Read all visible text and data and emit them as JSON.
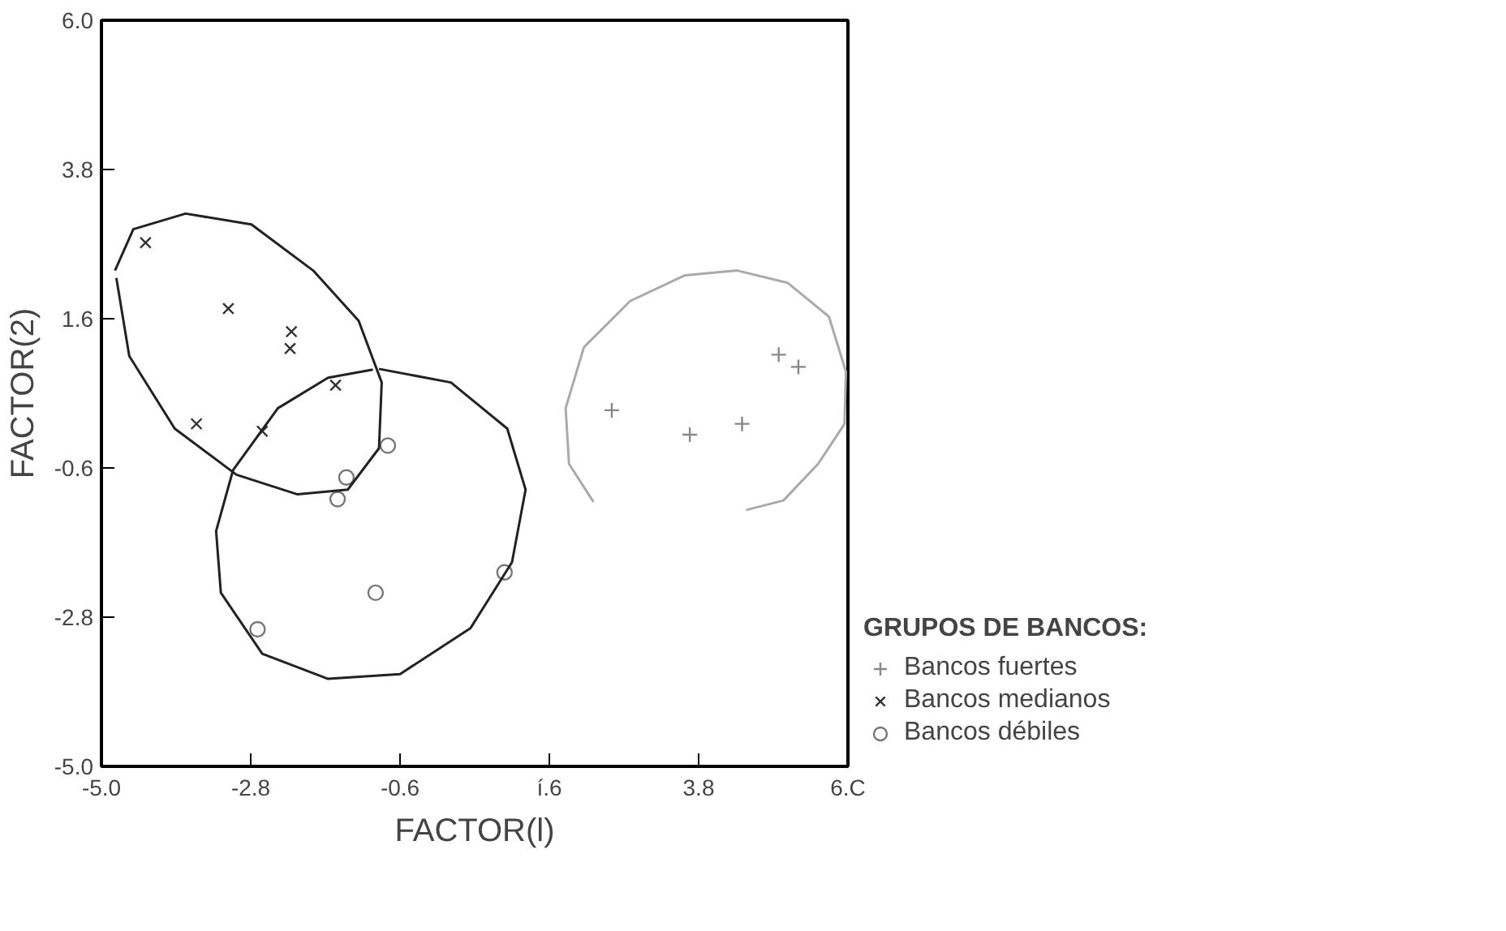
{
  "chart_data": {
    "type": "scatter",
    "xlabel": "FACTOR(l)",
    "ylabel": "FACTOR(2)",
    "legend_title": "GRUPOS DE BANCOS:",
    "legend": "right",
    "grid": false,
    "xlim": [
      -5.0,
      6.0
    ],
    "ylim": [
      -5.0,
      6.0
    ],
    "xticks": [
      {
        "value": -5.0,
        "label": "-5.0"
      },
      {
        "value": -2.8,
        "label": "-2.8"
      },
      {
        "value": -0.6,
        "label": "-0.6"
      },
      {
        "value": 1.6,
        "label": "í.6"
      },
      {
        "value": 3.8,
        "label": "3.8"
      },
      {
        "value": 6.0,
        "label": "6.C"
      }
    ],
    "yticks": [
      {
        "value": -5.0,
        "label": "-5.0"
      },
      {
        "value": -2.8,
        "label": "-2.8"
      },
      {
        "value": -0.6,
        "label": "-0.6"
      },
      {
        "value": 1.6,
        "label": "1.6"
      },
      {
        "value": 3.8,
        "label": "3.8"
      },
      {
        "value": 6.0,
        "label": "6.0"
      }
    ],
    "series": [
      {
        "name": "Bancos fuertes",
        "color": "#888888",
        "marker": "cross",
        "x": [
          2.52,
          3.67,
          4.44,
          4.98,
          5.27
        ],
        "values": [
          0.25,
          -0.11,
          0.05,
          1.07,
          0.89
        ]
      },
      {
        "name": "Bancos medianos",
        "color": "#333333",
        "marker": "x",
        "x": [
          -4.35,
          -3.13,
          -2.2,
          -2.22,
          -1.55,
          -3.6,
          -2.63
        ],
        "values": [
          2.72,
          1.75,
          1.41,
          1.16,
          0.62,
          0.05,
          -0.06
        ]
      },
      {
        "name": "Bancos débiles",
        "color": "#777777",
        "marker": "circle",
        "x": [
          -0.78,
          -1.39,
          -1.52,
          -0.96,
          0.94,
          -2.7
        ],
        "values": [
          -0.27,
          -0.74,
          -1.06,
          -2.44,
          -2.14,
          -2.98
        ]
      },
      {
        "type": "line",
        "color": "#222222",
        "x": [
          -4.8,
          -4.53,
          -3.76,
          -2.79,
          -1.88,
          -1.21,
          -0.87,
          -0.91,
          -1.37,
          -2.11,
          -3.01,
          -3.92,
          -4.59,
          -4.78
        ],
        "values": [
          2.31,
          2.92,
          3.15,
          2.99,
          2.31,
          1.57,
          0.66,
          -0.31,
          -0.92,
          -0.99,
          -0.7,
          -0.02,
          1.05,
          2.2
        ]
      },
      {
        "type": "line",
        "color": "#222222",
        "x": [
          -0.91,
          0.15,
          0.98,
          1.25,
          1.05,
          0.44,
          -0.6,
          -1.66,
          -2.63,
          -3.24,
          -3.31,
          -3.06,
          -2.4,
          -1.66,
          -1.0
        ],
        "values": [
          0.86,
          0.66,
          -0.02,
          -0.92,
          -1.99,
          -2.96,
          -3.64,
          -3.71,
          -3.34,
          -2.44,
          -1.53,
          -0.63,
          0.28,
          0.73,
          0.85
        ]
      },
      {
        "type": "line",
        "color": "#aaaaaa",
        "x": [
          2.25,
          1.89,
          1.84,
          2.11,
          2.79,
          3.6,
          4.37,
          5.11,
          5.72,
          5.97,
          5.95,
          5.56,
          5.05,
          4.5
        ],
        "values": [
          -1.1,
          -0.54,
          0.28,
          1.18,
          1.86,
          2.24,
          2.31,
          2.13,
          1.63,
          0.82,
          0.05,
          -0.54,
          -1.08,
          -1.22
        ]
      }
    ]
  }
}
